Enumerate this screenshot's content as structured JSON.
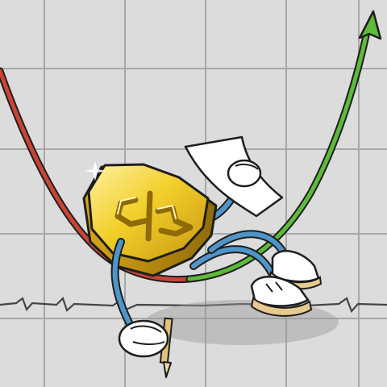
{
  "colors": {
    "paper": "#dcdcdc",
    "grid": "#7d7d7d",
    "curve_down": "#c94437",
    "curve_up": "#5dbb3a",
    "coin_face": "#f2cf2a",
    "coin_edge": "#b88a10",
    "limb": "#4f95c9",
    "glove": "#ffffff",
    "outline": "#1e1e1e"
  },
  "icons": {
    "arrow": "up-right-arrow-icon",
    "coin_symbol": "stablecoin-symbol-icon",
    "pencil": "pencil-icon"
  }
}
